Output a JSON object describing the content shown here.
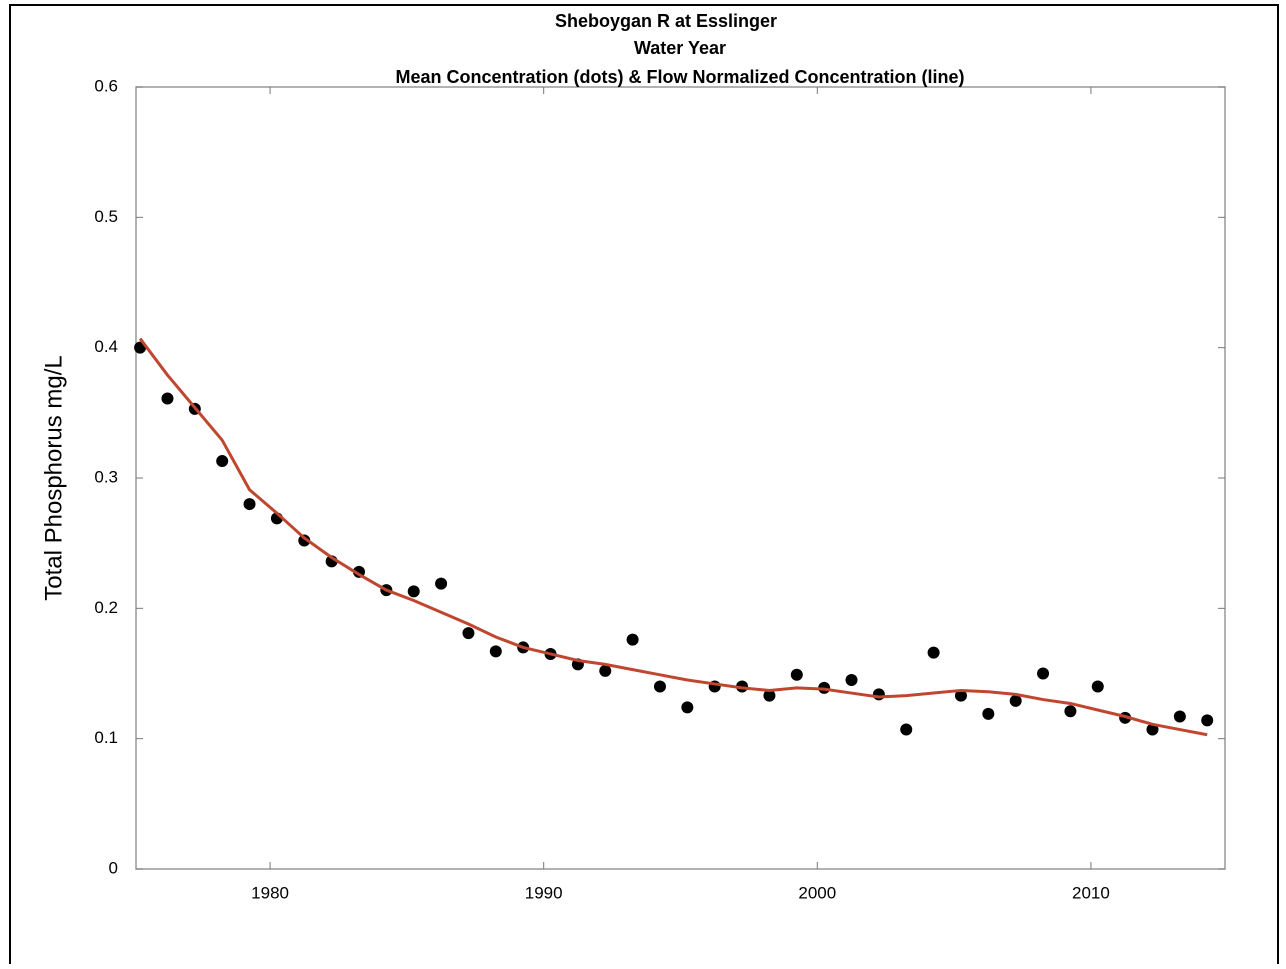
{
  "chart_data": {
    "type": "scatter",
    "title": [
      "Sheboygan R at Esslinger",
      "Water Year",
      "Mean Concentration (dots) & Flow Normalized Concentration (line)"
    ],
    "y_label": "Total Phosphorus mg/L",
    "x": [
      1975.25,
      1976.25,
      1977.25,
      1978.25,
      1979.25,
      1980.25,
      1981.25,
      1982.25,
      1983.25,
      1984.25,
      1985.25,
      1986.25,
      1987.25,
      1988.25,
      1989.25,
      1990.25,
      1991.25,
      1992.25,
      1993.25,
      1994.25,
      1995.25,
      1996.25,
      1997.25,
      1998.25,
      1999.25,
      2000.25,
      2001.25,
      2002.25,
      2003.25,
      2004.25,
      2005.25,
      2006.25,
      2007.25,
      2008.25,
      2009.25,
      2010.25,
      2011.25,
      2012.25,
      2013.25,
      2014.25
    ],
    "series": [
      {
        "mode": "markers",
        "color": "#000000",
        "values": [
          0.4,
          0.361,
          0.353,
          0.313,
          0.28,
          0.269,
          0.252,
          0.236,
          0.228,
          0.214,
          0.213,
          0.219,
          0.181,
          0.167,
          0.17,
          0.165,
          0.157,
          0.152,
          0.176,
          0.14,
          0.124,
          0.14,
          0.14,
          0.133,
          0.149,
          0.139,
          0.145,
          0.134,
          0.107,
          0.166,
          0.133,
          0.119,
          0.129,
          0.15,
          0.121,
          0.14,
          0.116,
          0.107,
          0.117,
          0.114
        ]
      },
      {
        "mode": "line",
        "color": "#c0462f",
        "values": [
          0.407,
          0.379,
          0.354,
          0.329,
          0.291,
          0.273,
          0.254,
          0.239,
          0.226,
          0.214,
          0.206,
          0.197,
          0.188,
          0.178,
          0.17,
          0.165,
          0.16,
          0.157,
          0.153,
          0.149,
          0.145,
          0.142,
          0.139,
          0.137,
          0.139,
          0.138,
          0.135,
          0.132,
          0.133,
          0.135,
          0.137,
          0.136,
          0.134,
          0.13,
          0.127,
          0.122,
          0.117,
          0.111,
          0.107,
          0.103
        ]
      }
    ],
    "xlim": [
      1975.1,
      2014.9
    ],
    "xticks": [
      1980,
      1990,
      2000,
      2010
    ],
    "ylim": [
      0,
      0.6
    ],
    "yticks": [
      0,
      0.1,
      0.2,
      0.3,
      0.4,
      0.5,
      0.6
    ]
  }
}
